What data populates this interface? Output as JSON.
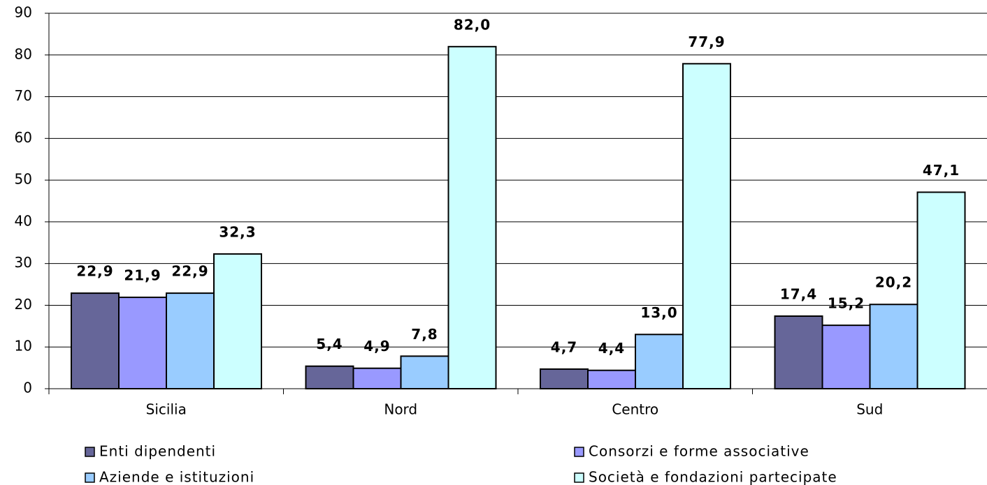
{
  "chart_data": {
    "type": "bar",
    "categories": [
      "Sicilia",
      "Nord",
      "Centro",
      "Sud"
    ],
    "series": [
      {
        "name": "Enti dipendenti",
        "color": "#666699",
        "values": [
          22.9,
          5.4,
          4.7,
          17.4
        ],
        "value_labels": [
          "22,9",
          "5,4",
          "4,7",
          "17,4"
        ]
      },
      {
        "name": "Consorzi e forme associative",
        "color": "#9999ff",
        "values": [
          21.9,
          4.9,
          4.4,
          15.2
        ],
        "value_labels": [
          "21,9",
          "4,9",
          "4,4",
          "15,2"
        ]
      },
      {
        "name": "Aziende e istituzioni",
        "color": "#99ccff",
        "values": [
          22.9,
          7.8,
          13.0,
          20.2
        ],
        "value_labels": [
          "22,9",
          "7,8",
          "13,0",
          "20,2"
        ]
      },
      {
        "name": "Società e fondazioni partecipate",
        "color": "#ccffff",
        "values": [
          32.3,
          82.0,
          77.9,
          47.1
        ],
        "value_labels": [
          "32,3",
          "82,0",
          "77,9",
          "47,1"
        ]
      }
    ],
    "ylim": [
      0,
      90
    ],
    "yticks": [
      0,
      10,
      20,
      30,
      40,
      50,
      60,
      70,
      80,
      90
    ],
    "grid": true
  }
}
